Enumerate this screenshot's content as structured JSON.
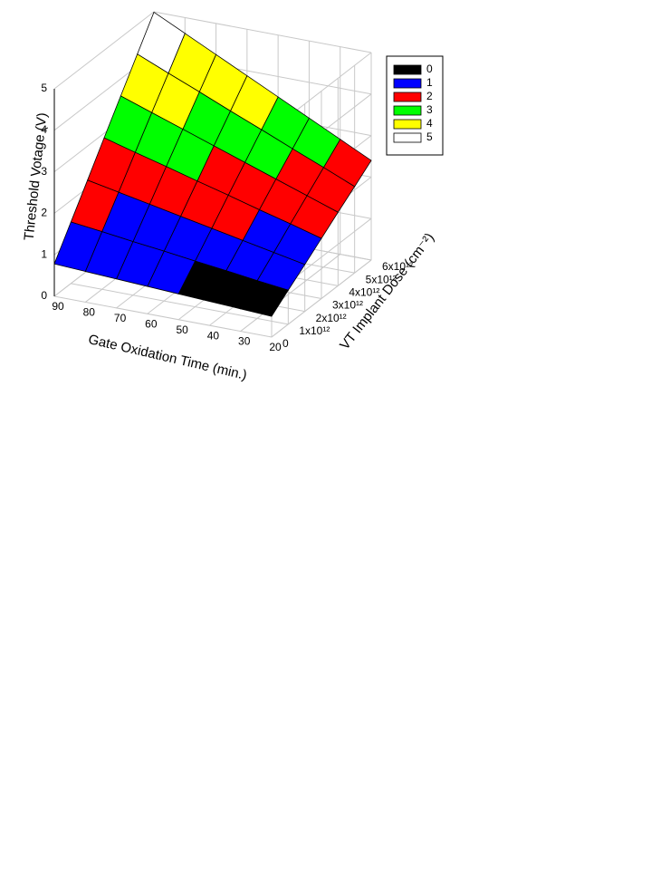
{
  "chart_data": {
    "type": "surface",
    "x_label": "Gate Oxidation Time (min.)",
    "y_label": "VT Implant Dose (cm⁻²)",
    "z_label": "Threshold Votage (V)",
    "x": [
      20,
      30,
      40,
      50,
      60,
      70,
      80,
      90
    ],
    "x_reversed": true,
    "y": [
      0,
      {
        "value": 1000000000000.0,
        "label": "1x10¹²"
      },
      {
        "value": 2000000000000.0,
        "label": "2x10¹²"
      },
      {
        "value": 3000000000000.0,
        "label": "3x10¹²"
      },
      {
        "value": 4000000000000.0,
        "label": "4x10¹²"
      },
      {
        "value": 5000000000000.0,
        "label": "5x10¹²"
      },
      {
        "value": 6000000000000.0,
        "label": "6x10¹²"
      }
    ],
    "z": [
      [
        0.5,
        0.54,
        0.58,
        0.62,
        0.66,
        0.7,
        0.74,
        0.78
      ],
      [
        0.82,
        0.91,
        1.01,
        1.1,
        1.2,
        1.29,
        1.39,
        1.48
      ],
      [
        1.13,
        1.28,
        1.43,
        1.58,
        1.73,
        1.88,
        2.03,
        2.18
      ],
      [
        1.45,
        1.66,
        1.86,
        2.07,
        2.27,
        2.48,
        2.68,
        2.89
      ],
      [
        1.77,
        2.03,
        2.29,
        2.55,
        2.81,
        3.07,
        3.33,
        3.59
      ],
      [
        2.08,
        2.4,
        2.71,
        3.03,
        3.34,
        3.66,
        3.97,
        4.29
      ],
      [
        2.4,
        2.77,
        3.14,
        3.51,
        3.88,
        4.25,
        4.62,
        4.99
      ]
    ],
    "xlim": [
      20,
      90
    ],
    "ylim": [
      0,
      6000000000000.0
    ],
    "zlim": [
      0,
      5
    ],
    "zticks": [
      0,
      1,
      2,
      3,
      4,
      5
    ],
    "grid": true,
    "legend": [
      {
        "name": "0",
        "color": "#000000"
      },
      {
        "name": "1",
        "color": "#0000ff"
      },
      {
        "name": "2",
        "color": "#ff0000"
      },
      {
        "name": "3",
        "color": "#00ff00"
      },
      {
        "name": "4",
        "color": "#ffff00"
      },
      {
        "name": "5",
        "color": "#ffffff"
      }
    ],
    "legend_position": "upper right"
  }
}
